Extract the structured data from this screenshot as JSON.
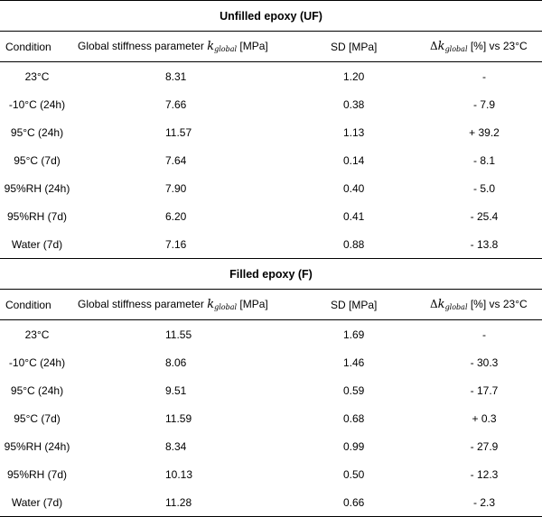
{
  "tables": {
    "uf": {
      "title": "Unfilled epoxy (UF)",
      "headers": {
        "condition": "Condition",
        "stiffness_prefix": "Global stiffness parameter ",
        "k_symbol": "k",
        "k_subscript": "global",
        "stiffness_suffix": " [MPa]",
        "sd": "SD [MPa]",
        "delta_symbol": "Δ",
        "delta_suffix": " [%] vs 23°C"
      },
      "rows": [
        {
          "condition": "23°C",
          "k": "8.31",
          "sd": "1.20",
          "delta": "-"
        },
        {
          "condition": "-10°C (24h)",
          "k": "7.66",
          "sd": "0.38",
          "delta": "- 7.9"
        },
        {
          "condition": "95°C (24h)",
          "k": "11.57",
          "sd": "1.13",
          "delta": "+ 39.2"
        },
        {
          "condition": "95°C (7d)",
          "k": "7.64",
          "sd": "0.14",
          "delta": "- 8.1"
        },
        {
          "condition": "95%RH (24h)",
          "k": "7.90",
          "sd": "0.40",
          "delta": "- 5.0"
        },
        {
          "condition": "95%RH (7d)",
          "k": "6.20",
          "sd": "0.41",
          "delta": "- 25.4"
        },
        {
          "condition": "Water (7d)",
          "k": "7.16",
          "sd": "0.88",
          "delta": "- 13.8"
        }
      ]
    },
    "f": {
      "title": "Filled epoxy (F)",
      "headers": {
        "condition": "Condition",
        "stiffness_prefix": "Global stiffness parameter ",
        "k_symbol": "k",
        "k_subscript": "global",
        "stiffness_suffix": " [MPa]",
        "sd": "SD [MPa]",
        "delta_symbol": "Δ",
        "delta_suffix": " [%] vs 23°C"
      },
      "rows": [
        {
          "condition": "23°C",
          "k": "11.55",
          "sd": "1.69",
          "delta": "-"
        },
        {
          "condition": "-10°C (24h)",
          "k": "8.06",
          "sd": "1.46",
          "delta": "- 30.3"
        },
        {
          "condition": "95°C (24h)",
          "k": "9.51",
          "sd": "0.59",
          "delta": "- 17.7"
        },
        {
          "condition": "95°C (7d)",
          "k": "11.59",
          "sd": "0.68",
          "delta": "+ 0.3"
        },
        {
          "condition": "95%RH (24h)",
          "k": "8.34",
          "sd": "0.99",
          "delta": "- 27.9"
        },
        {
          "condition": "95%RH (7d)",
          "k": "10.13",
          "sd": "0.50",
          "delta": "- 12.3"
        },
        {
          "condition": "Water (7d)",
          "k": "11.28",
          "sd": "0.66",
          "delta": "- 2.3"
        }
      ]
    }
  }
}
